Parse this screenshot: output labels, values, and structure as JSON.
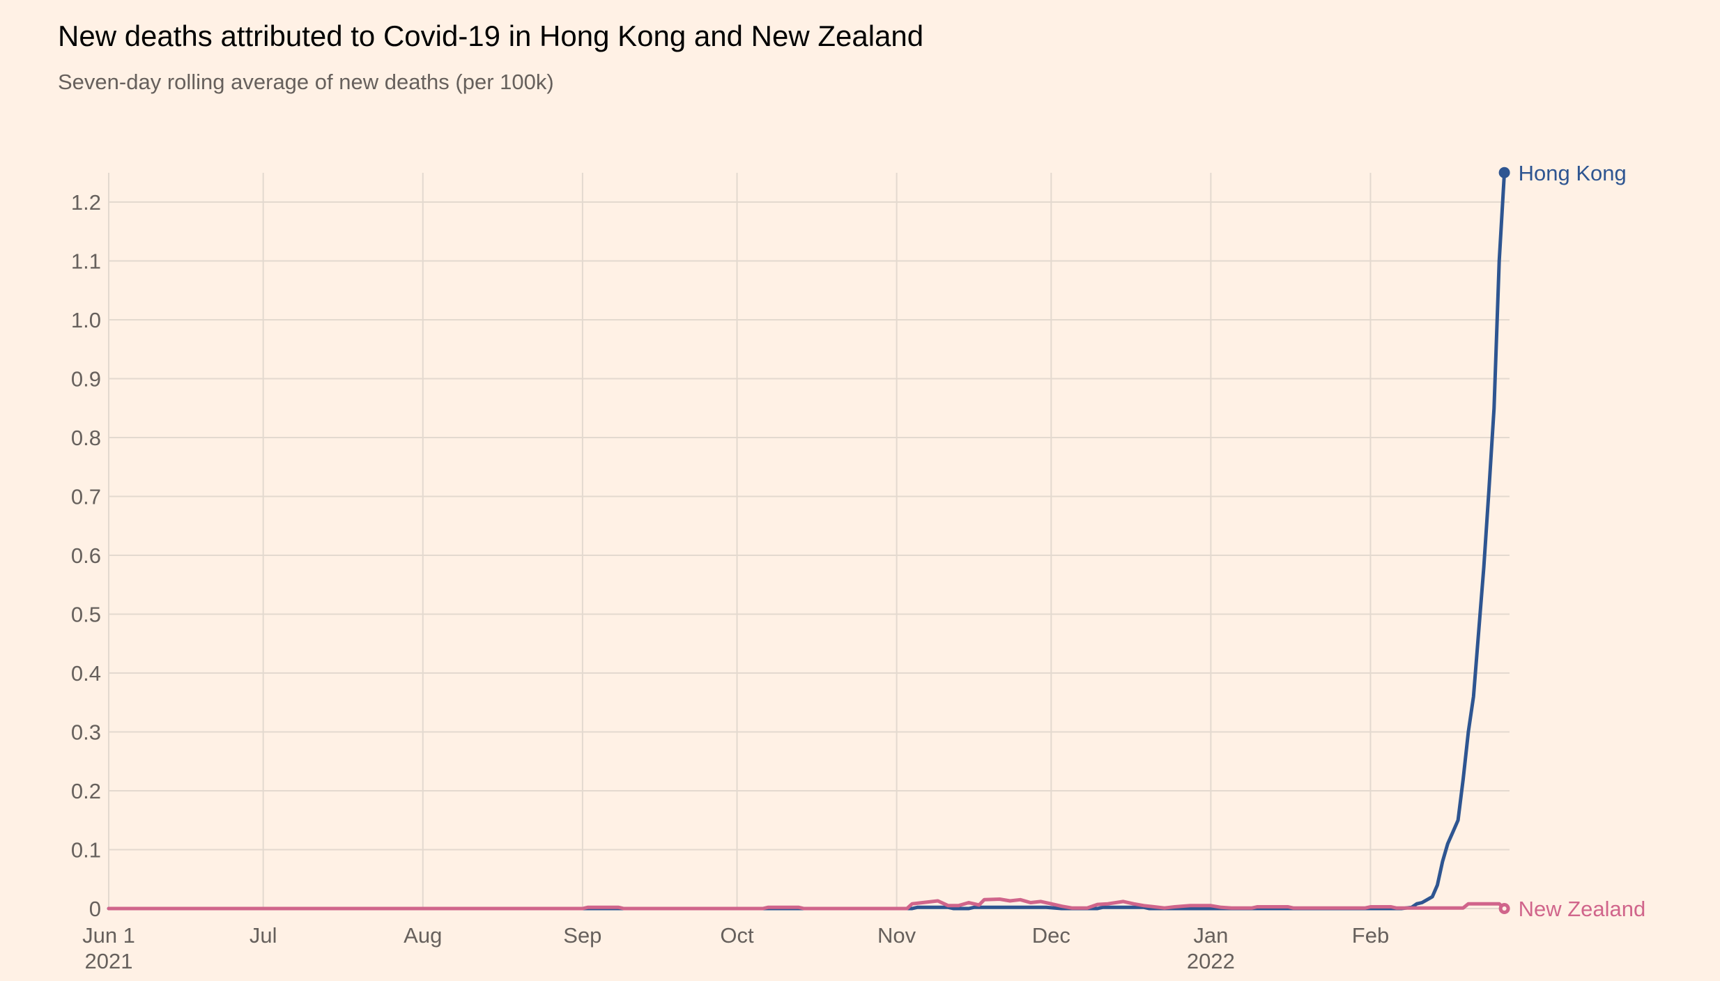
{
  "title": "New deaths attributed to Covid-19 in Hong Kong and New Zealand",
  "subtitle": "Seven-day rolling average of new deaths (per 100k)",
  "colors": {
    "background": "#fff1e5",
    "grid": "#e3d9cf",
    "axis_text": "#66605c",
    "hong_kong": "#2e5591",
    "new_zealand": "#d0658b"
  },
  "chart_data": {
    "type": "line",
    "title": "New deaths attributed to Covid-19 in Hong Kong and New Zealand",
    "subtitle": "Seven-day rolling average of new deaths (per 100k)",
    "xlabel": "",
    "ylabel": "",
    "xlim": [
      "2021-06-01",
      "2022-02-28"
    ],
    "ylim": [
      0,
      1.25
    ],
    "grid": true,
    "legend": "inline-right",
    "x_ticks": [
      {
        "date": "2021-06-01",
        "label": "Jun 1",
        "sublabel": "2021"
      },
      {
        "date": "2021-07-01",
        "label": "Jul",
        "sublabel": ""
      },
      {
        "date": "2021-08-01",
        "label": "Aug",
        "sublabel": ""
      },
      {
        "date": "2021-09-01",
        "label": "Sep",
        "sublabel": ""
      },
      {
        "date": "2021-10-01",
        "label": "Oct",
        "sublabel": ""
      },
      {
        "date": "2021-11-01",
        "label": "Nov",
        "sublabel": ""
      },
      {
        "date": "2021-12-01",
        "label": "Dec",
        "sublabel": ""
      },
      {
        "date": "2022-01-01",
        "label": "Jan",
        "sublabel": "2022"
      },
      {
        "date": "2022-02-01",
        "label": "Feb",
        "sublabel": ""
      }
    ],
    "y_ticks": [
      {
        "value": 0,
        "label": "0"
      },
      {
        "value": 0.1,
        "label": "0.1"
      },
      {
        "value": 0.2,
        "label": "0.2"
      },
      {
        "value": 0.3,
        "label": "0.3"
      },
      {
        "value": 0.4,
        "label": "0.4"
      },
      {
        "value": 0.5,
        "label": "0.5"
      },
      {
        "value": 0.6,
        "label": "0.6"
      },
      {
        "value": 0.7,
        "label": "0.7"
      },
      {
        "value": 0.8,
        "label": "0.8"
      },
      {
        "value": 0.9,
        "label": "0.9"
      },
      {
        "value": 1.0,
        "label": "1.0"
      },
      {
        "value": 1.1,
        "label": "1.1"
      },
      {
        "value": 1.2,
        "label": "1.2"
      }
    ],
    "series": [
      {
        "name": "Hong Kong",
        "color": "#2e5591",
        "points": [
          [
            "2021-06-01",
            0
          ],
          [
            "2021-11-04",
            0
          ],
          [
            "2021-11-05",
            0.002
          ],
          [
            "2021-11-11",
            0.002
          ],
          [
            "2021-11-12",
            0
          ],
          [
            "2021-11-15",
            0
          ],
          [
            "2021-11-16",
            0.002
          ],
          [
            "2021-11-30",
            0.002
          ],
          [
            "2021-12-03",
            0
          ],
          [
            "2021-12-10",
            0
          ],
          [
            "2021-12-11",
            0.002
          ],
          [
            "2021-12-19",
            0.002
          ],
          [
            "2021-12-20",
            0
          ],
          [
            "2022-02-07",
            0
          ],
          [
            "2022-02-09",
            0.002
          ],
          [
            "2022-02-10",
            0.008
          ],
          [
            "2022-02-11",
            0.01
          ],
          [
            "2022-02-12",
            0.015
          ],
          [
            "2022-02-13",
            0.02
          ],
          [
            "2022-02-14",
            0.04
          ],
          [
            "2022-02-15",
            0.08
          ],
          [
            "2022-02-16",
            0.11
          ],
          [
            "2022-02-17",
            0.13
          ],
          [
            "2022-02-18",
            0.15
          ],
          [
            "2022-02-19",
            0.22
          ],
          [
            "2022-02-20",
            0.3
          ],
          [
            "2022-02-21",
            0.36
          ],
          [
            "2022-02-22",
            0.47
          ],
          [
            "2022-02-23",
            0.58
          ],
          [
            "2022-02-24",
            0.71
          ],
          [
            "2022-02-25",
            0.85
          ],
          [
            "2022-02-26",
            1.1
          ],
          [
            "2022-02-27",
            1.25
          ]
        ],
        "end_label": "Hong Kong"
      },
      {
        "name": "New Zealand",
        "color": "#d0658b",
        "points": [
          [
            "2021-06-01",
            0
          ],
          [
            "2021-09-01",
            0
          ],
          [
            "2021-09-02",
            0.002
          ],
          [
            "2021-09-08",
            0.002
          ],
          [
            "2021-09-09",
            0
          ],
          [
            "2021-10-06",
            0
          ],
          [
            "2021-10-07",
            0.002
          ],
          [
            "2021-10-13",
            0.002
          ],
          [
            "2021-10-14",
            0
          ],
          [
            "2021-11-03",
            0
          ],
          [
            "2021-11-04",
            0.008
          ],
          [
            "2021-11-06",
            0.01
          ],
          [
            "2021-11-09",
            0.013
          ],
          [
            "2021-11-11",
            0.005
          ],
          [
            "2021-11-13",
            0.005
          ],
          [
            "2021-11-15",
            0.01
          ],
          [
            "2021-11-17",
            0.006
          ],
          [
            "2021-11-18",
            0.015
          ],
          [
            "2021-11-21",
            0.016
          ],
          [
            "2021-11-23",
            0.013
          ],
          [
            "2021-11-25",
            0.015
          ],
          [
            "2021-11-27",
            0.01
          ],
          [
            "2021-11-29",
            0.012
          ],
          [
            "2021-12-01",
            0.008
          ],
          [
            "2021-12-03",
            0.004
          ],
          [
            "2021-12-05",
            0.001
          ],
          [
            "2021-12-08",
            0.001
          ],
          [
            "2021-12-10",
            0.007
          ],
          [
            "2021-12-12",
            0.008
          ],
          [
            "2021-12-15",
            0.012
          ],
          [
            "2021-12-17",
            0.008
          ],
          [
            "2021-12-19",
            0.005
          ],
          [
            "2021-12-21",
            0.003
          ],
          [
            "2021-12-23",
            0.001
          ],
          [
            "2021-12-25",
            0.003
          ],
          [
            "2021-12-28",
            0.005
          ],
          [
            "2022-01-01",
            0.005
          ],
          [
            "2022-01-03",
            0.002
          ],
          [
            "2022-01-05",
            0.001
          ],
          [
            "2022-01-09",
            0.001
          ],
          [
            "2022-01-10",
            0.003
          ],
          [
            "2022-01-16",
            0.003
          ],
          [
            "2022-01-17",
            0.001
          ],
          [
            "2022-01-31",
            0.001
          ],
          [
            "2022-02-01",
            0.003
          ],
          [
            "2022-02-05",
            0.003
          ],
          [
            "2022-02-06",
            0.001
          ],
          [
            "2022-02-19",
            0.001
          ],
          [
            "2022-02-20",
            0.008
          ],
          [
            "2022-02-26",
            0.008
          ],
          [
            "2022-02-27",
            0.0
          ]
        ],
        "end_label": "New Zealand"
      }
    ]
  }
}
